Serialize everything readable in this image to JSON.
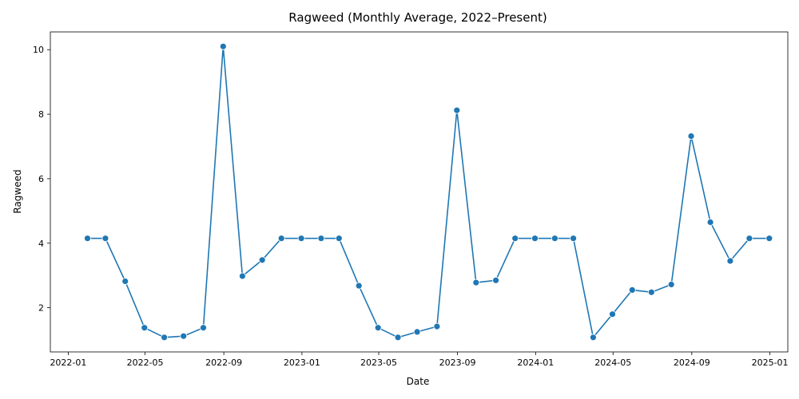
{
  "chart_data": {
    "type": "line",
    "title": "Ragweed (Monthly Average, 2022–Present)",
    "xlabel": "Date",
    "ylabel": "Ragweed",
    "xlim": [
      "2021-12-04",
      "2025-01-29"
    ],
    "ylim": [
      0.63,
      10.55
    ],
    "x_ticks": [
      "2022-01",
      "2022-05",
      "2022-09",
      "2023-01",
      "2023-05",
      "2023-09",
      "2024-01",
      "2024-05",
      "2024-09",
      "2025-01"
    ],
    "y_ticks": [
      2,
      4,
      6,
      8,
      10
    ],
    "grid": false,
    "color": "#1f77b4",
    "series": [
      {
        "x": [
          "2022-01-31",
          "2022-02-28",
          "2022-03-31",
          "2022-04-30",
          "2022-05-31",
          "2022-06-30",
          "2022-07-31",
          "2022-08-31",
          "2022-09-30",
          "2022-10-31",
          "2022-11-30",
          "2022-12-31",
          "2023-01-31",
          "2023-02-28",
          "2023-03-31",
          "2023-04-30",
          "2023-05-31",
          "2023-06-30",
          "2023-07-31",
          "2023-08-31",
          "2023-09-30",
          "2023-10-31",
          "2023-11-30",
          "2023-12-31",
          "2024-01-31",
          "2024-02-29",
          "2024-03-31",
          "2024-04-30",
          "2024-05-31",
          "2024-06-30",
          "2024-07-31",
          "2024-08-31",
          "2024-09-30",
          "2024-10-31",
          "2024-11-30",
          "2024-12-31"
        ],
        "values": [
          4.15,
          4.15,
          2.82,
          1.38,
          1.08,
          1.12,
          1.38,
          10.1,
          2.98,
          3.48,
          4.15,
          4.15,
          4.15,
          4.15,
          2.68,
          1.38,
          1.08,
          1.25,
          1.42,
          8.12,
          2.78,
          2.85,
          4.15,
          4.15,
          4.15,
          4.15,
          1.08,
          1.8,
          2.55,
          2.48,
          2.72,
          7.32,
          4.65,
          3.45,
          4.15,
          4.15
        ]
      }
    ]
  }
}
